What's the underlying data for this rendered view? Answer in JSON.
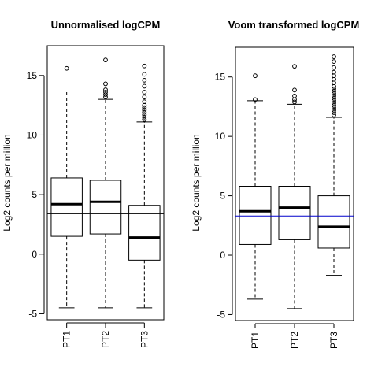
{
  "chart_data": [
    {
      "type": "box",
      "title": "Unnormalised logCPM",
      "ylabel": "Log2 counts per million",
      "xlabel": "",
      "categories": [
        "PT1",
        "PT2",
        "PT3"
      ],
      "ylim": [
        -5.5,
        17.5
      ],
      "yticks": [
        -5,
        0,
        5,
        10,
        15
      ],
      "hline": {
        "value": 3.4,
        "color": "#000000"
      },
      "boxes": [
        {
          "whisker_low": -4.5,
          "q1": 1.5,
          "median": 4.2,
          "q3": 6.4,
          "whisker_high": 13.7,
          "outliers": [
            15.6
          ]
        },
        {
          "whisker_low": -4.5,
          "q1": 1.7,
          "median": 4.4,
          "q3": 6.2,
          "whisker_high": 13.0,
          "outliers": [
            13.2,
            13.4,
            13.6,
            13.8,
            14.3,
            16.3
          ]
        },
        {
          "whisker_low": -4.5,
          "q1": -0.5,
          "median": 1.4,
          "q3": 4.1,
          "whisker_high": 11.1,
          "outliers": [
            11.3,
            11.5,
            11.7,
            11.9,
            12.1,
            12.3,
            12.5,
            12.8,
            13.2,
            13.6,
            14.1,
            14.6,
            15.1,
            15.8
          ]
        }
      ]
    },
    {
      "type": "box",
      "title": "Voom transformed logCPM",
      "ylabel": "Log2 counts per million",
      "xlabel": "",
      "categories": [
        "PT1",
        "PT2",
        "PT3"
      ],
      "ylim": [
        -5.5,
        17.5
      ],
      "yticks": [
        -5,
        0,
        5,
        10,
        15
      ],
      "hline": {
        "value": 3.3,
        "color": "#0000cc"
      },
      "boxes": [
        {
          "whisker_low": -3.7,
          "q1": 0.9,
          "median": 3.7,
          "q3": 5.8,
          "whisker_high": 13.0,
          "outliers": [
            13.1,
            15.1
          ]
        },
        {
          "whisker_low": -4.5,
          "q1": 1.3,
          "median": 4.0,
          "q3": 5.8,
          "whisker_high": 12.7,
          "outliers": [
            12.9,
            13.1,
            13.4,
            13.9,
            15.9
          ]
        },
        {
          "whisker_low": -1.7,
          "q1": 0.6,
          "median": 2.4,
          "q3": 5.0,
          "whisker_high": 11.6,
          "outliers": [
            11.8,
            12.0,
            12.2,
            12.4,
            12.6,
            12.8,
            13.0,
            13.2,
            13.4,
            13.6,
            13.8,
            14.0,
            14.2,
            14.5,
            14.8,
            15.1,
            15.4,
            15.8,
            16.3,
            16.7
          ]
        }
      ]
    }
  ]
}
